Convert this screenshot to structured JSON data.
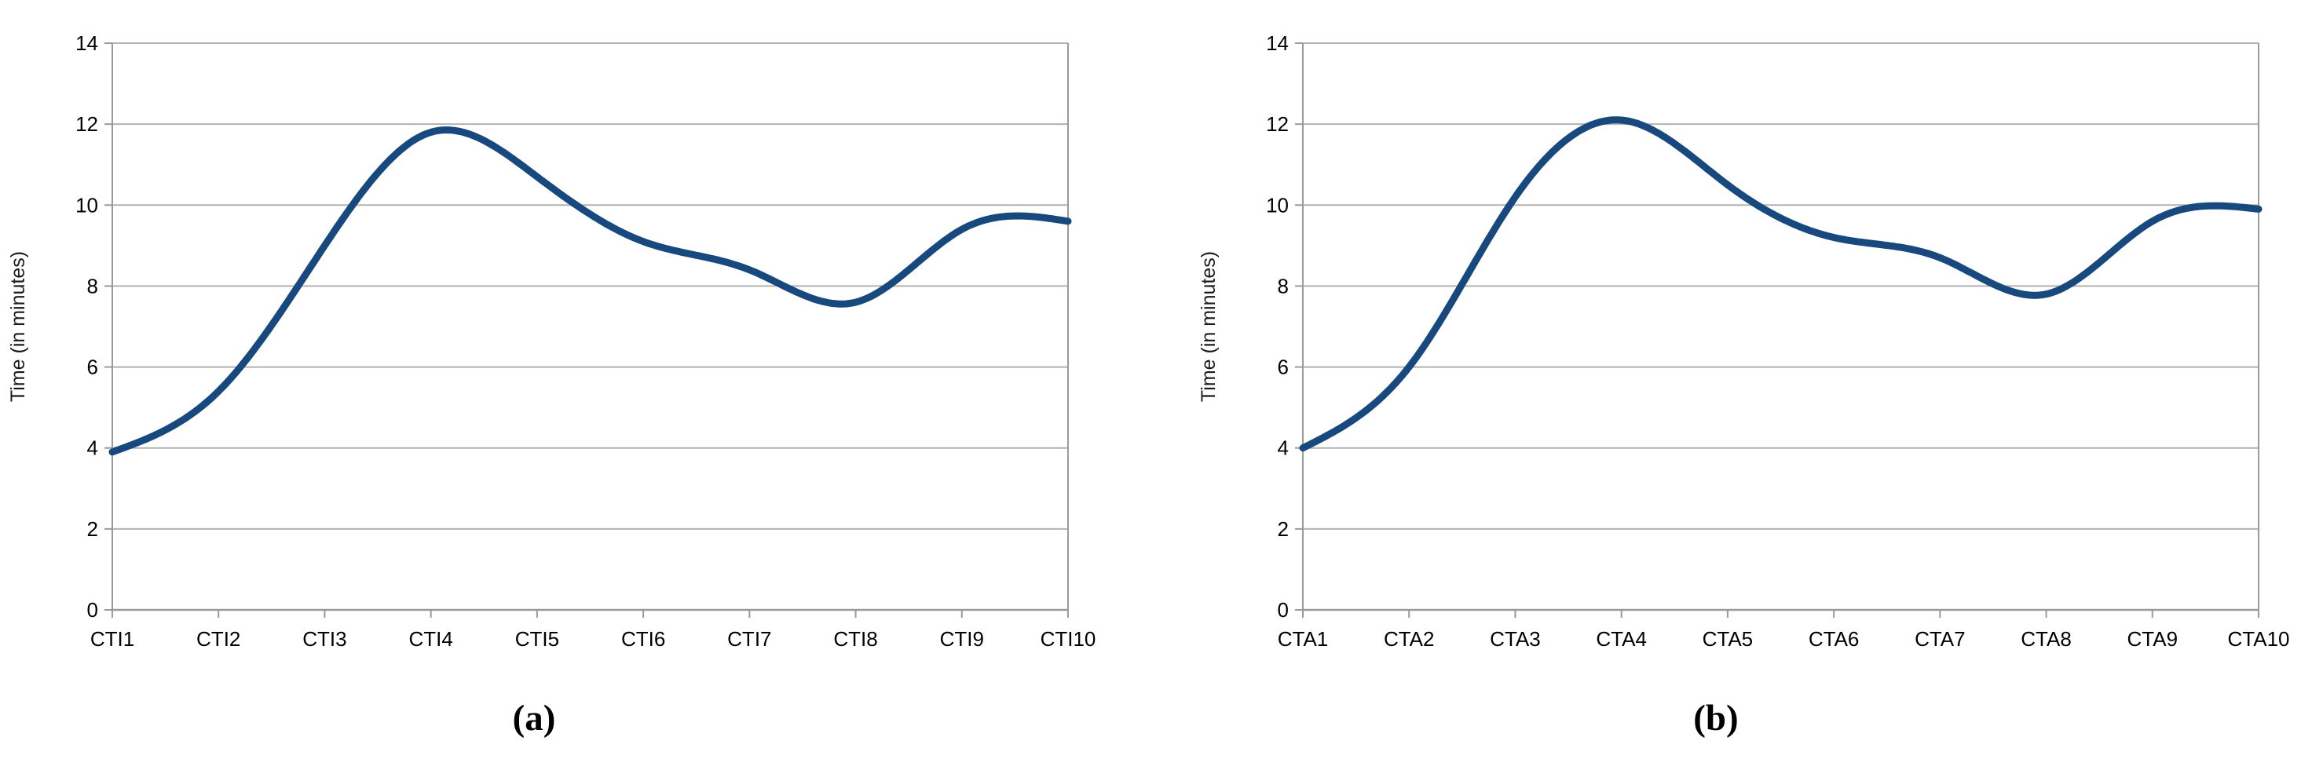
{
  "figure": {
    "background": "#ffffff",
    "series_line_color": "#17497F",
    "grid_color": "#b2b2b2",
    "axis_color": "#9a9a9a",
    "text_color": "#000000",
    "axis_title_color": "#1a1a1a"
  },
  "chart_data": [
    {
      "type": "line",
      "smooth": true,
      "title": "",
      "xlabel": "",
      "ylabel": "Time (in minutes)",
      "categories": [
        "CTI1",
        "CTI2",
        "CTI3",
        "CTI4",
        "CTI5",
        "CTI6",
        "CTI7",
        "CTI8",
        "CTI9",
        "CTI10"
      ],
      "values": [
        3.9,
        5.4,
        9.0,
        11.8,
        10.7,
        9.1,
        8.4,
        7.6,
        9.4,
        9.6
      ],
      "ylim": [
        0,
        14
      ],
      "ytick_step": 2,
      "grid": "horizontal",
      "legend": "none",
      "caption": "(a)"
    },
    {
      "type": "line",
      "smooth": true,
      "title": "",
      "xlabel": "",
      "ylabel": "Time (in minutes)",
      "categories": [
        "CTA1",
        "CTA2",
        "CTA3",
        "CTA4",
        "CTA5",
        "CTA6",
        "CTA7",
        "CTA8",
        "CTA9",
        "CTA10"
      ],
      "values": [
        4.0,
        6.0,
        10.2,
        12.1,
        10.5,
        9.2,
        8.7,
        7.8,
        9.6,
        9.9
      ],
      "ylim": [
        0,
        14
      ],
      "ytick_step": 2,
      "grid": "horizontal",
      "legend": "none",
      "caption": "(b)"
    }
  ]
}
